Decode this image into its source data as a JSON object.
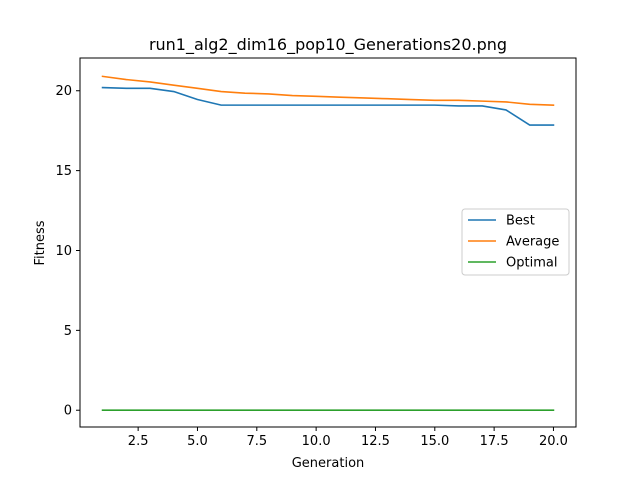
{
  "chart_data": {
    "type": "line",
    "title": "run1_alg2_dim16_pop10_Generations20.png",
    "xlabel": "Generation",
    "ylabel": "Fitness",
    "xlim": [
      0.05,
      20.95
    ],
    "ylim": [
      -1.05,
      22.05
    ],
    "xticks": [
      2.5,
      5.0,
      7.5,
      10.0,
      12.5,
      15.0,
      17.5,
      20.0
    ],
    "xtick_labels": [
      "2.5",
      "5.0",
      "7.5",
      "10.0",
      "12.5",
      "15.0",
      "17.5",
      "20.0"
    ],
    "yticks": [
      0,
      5,
      10,
      15,
      20
    ],
    "ytick_labels": [
      "0",
      "5",
      "10",
      "15",
      "20"
    ],
    "grid": false,
    "legend_position": "center-right",
    "x": [
      1,
      2,
      3,
      4,
      5,
      6,
      7,
      8,
      9,
      10,
      11,
      12,
      13,
      14,
      15,
      16,
      17,
      18,
      19,
      20
    ],
    "series": [
      {
        "name": "Best",
        "color": "#1f77b4",
        "values": [
          20.2,
          20.15,
          20.15,
          19.95,
          19.45,
          19.1,
          19.1,
          19.1,
          19.1,
          19.1,
          19.1,
          19.1,
          19.1,
          19.1,
          19.1,
          19.05,
          19.05,
          18.8,
          17.85,
          17.85
        ]
      },
      {
        "name": "Average",
        "color": "#ff7f0e",
        "values": [
          20.9,
          20.7,
          20.55,
          20.35,
          20.15,
          19.95,
          19.85,
          19.8,
          19.7,
          19.65,
          19.6,
          19.55,
          19.5,
          19.45,
          19.4,
          19.4,
          19.35,
          19.3,
          19.15,
          19.1
        ]
      },
      {
        "name": "Optimal",
        "color": "#2ca02c",
        "values": [
          0,
          0,
          0,
          0,
          0,
          0,
          0,
          0,
          0,
          0,
          0,
          0,
          0,
          0,
          0,
          0,
          0,
          0,
          0,
          0
        ]
      }
    ]
  }
}
